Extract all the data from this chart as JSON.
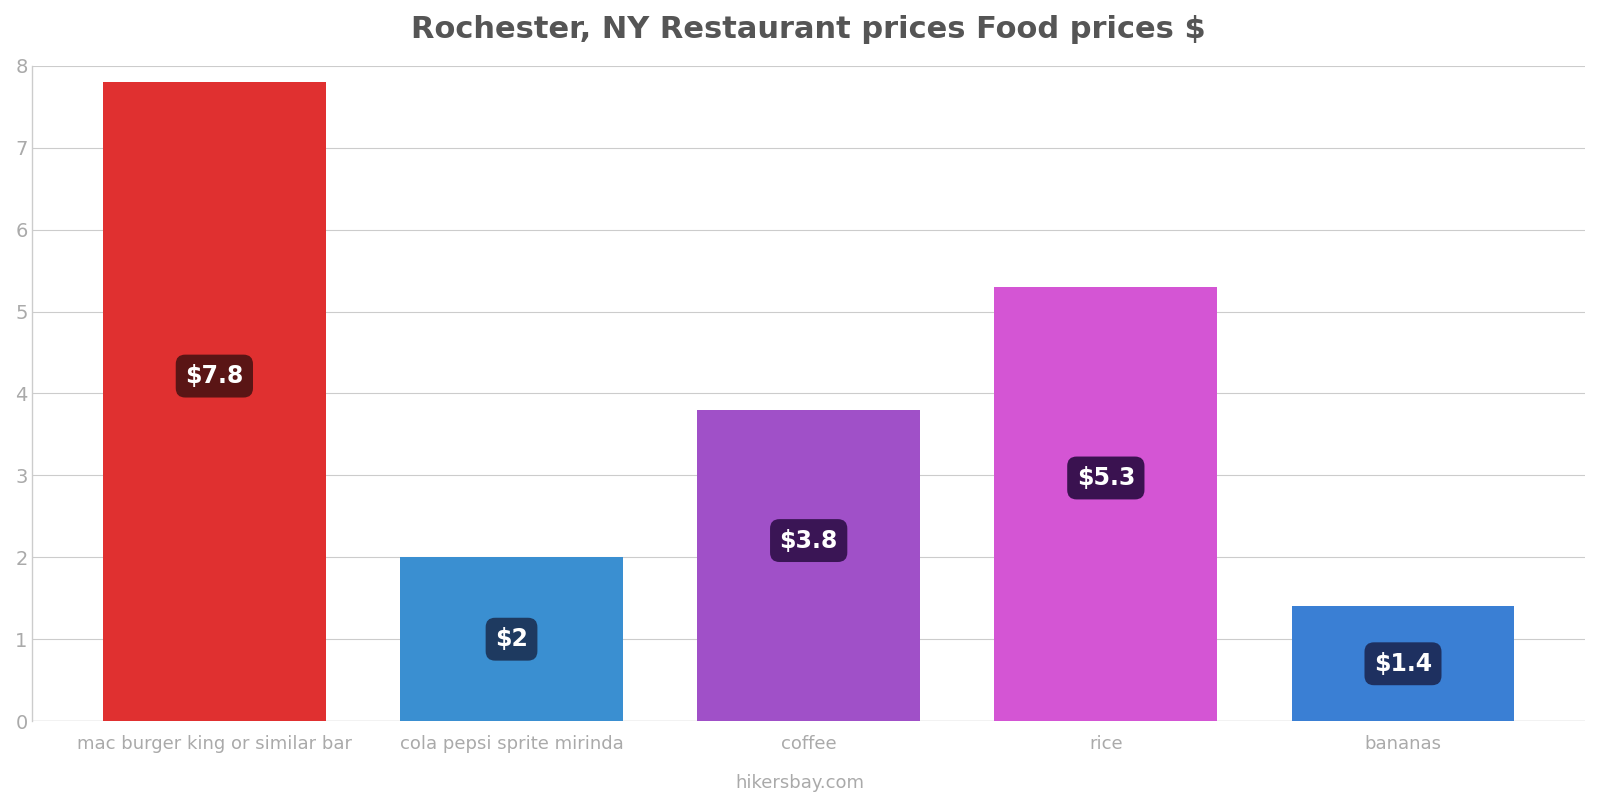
{
  "title": "Rochester, NY Restaurant prices Food prices $",
  "categories": [
    "mac burger king or similar bar",
    "cola pepsi sprite mirinda",
    "coffee",
    "rice",
    "bananas"
  ],
  "values": [
    7.8,
    2.0,
    3.8,
    5.3,
    1.4
  ],
  "bar_colors": [
    "#e03030",
    "#3a8fd1",
    "#a050c8",
    "#d455d4",
    "#3a7fd4"
  ],
  "label_box_colors": [
    "#5a1515",
    "#1e3a60",
    "#3a1555",
    "#3a1250",
    "#1e3060"
  ],
  "labels": [
    "$7.8",
    "$2",
    "$3.8",
    "$5.3",
    "$1.4"
  ],
  "ylim": [
    0,
    8
  ],
  "yticks": [
    0,
    1,
    2,
    3,
    4,
    5,
    6,
    7,
    8
  ],
  "title_fontsize": 22,
  "title_color": "#555555",
  "tick_color": "#aaaaaa",
  "axis_color": "#cccccc",
  "watermark": "hikersbay.com",
  "background_color": "#ffffff",
  "label_fontsize": 17,
  "label_text_color": "#ffffff",
  "xtick_fontsize": 13,
  "ytick_fontsize": 14,
  "bar_width": 0.75
}
